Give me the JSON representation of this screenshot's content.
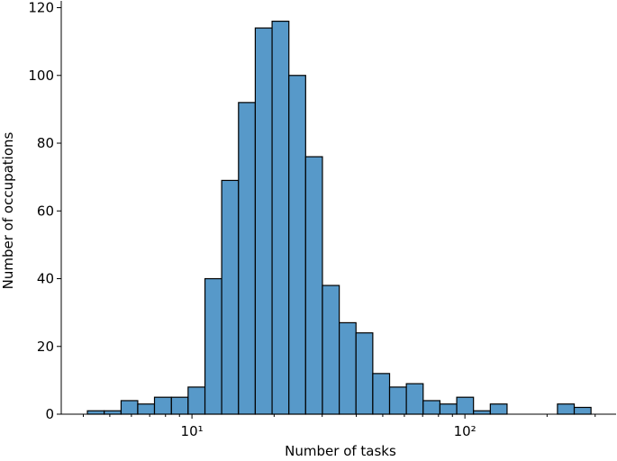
{
  "chart_data": {
    "type": "histogram",
    "xlabel": "Number of tasks",
    "ylabel": "Number of occupations",
    "xscale": "log",
    "bins": [
      4.14,
      4.77,
      5.5,
      6.33,
      7.29,
      8.41,
      9.68,
      11.16,
      12.85,
      14.81,
      17.06,
      19.66,
      22.65,
      26.09,
      30.06,
      34.64,
      39.9,
      45.97,
      52.97,
      61.02,
      70.31,
      81.0,
      93.33,
      107.5,
      123.9,
      142.7,
      164.4,
      189.5,
      218.3,
      251.5,
      289.7
    ],
    "values": [
      1,
      1,
      4,
      3,
      5,
      5,
      8,
      40,
      69,
      92,
      114,
      116,
      100,
      76,
      38,
      27,
      24,
      12,
      8,
      9,
      4,
      3,
      5,
      1,
      3,
      0,
      0,
      0,
      3,
      2
    ],
    "color": "#5799c9",
    "edgecolor": "#000000",
    "xlim": [
      3.32,
      358
    ],
    "ylim": [
      0,
      122
    ],
    "xticks": [
      {
        "value": 10,
        "label": "10¹"
      },
      {
        "value": 100,
        "label": "10²"
      }
    ],
    "xminorticks": [
      4,
      5,
      6,
      7,
      8,
      9,
      20,
      30,
      40,
      50,
      60,
      70,
      80,
      90,
      200,
      300
    ],
    "yticks": [
      0,
      20,
      40,
      60,
      80,
      100,
      120
    ]
  }
}
